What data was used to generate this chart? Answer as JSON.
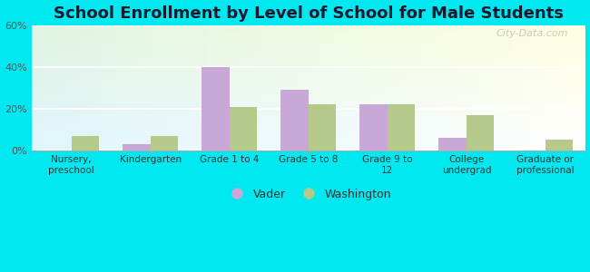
{
  "title": "School Enrollment by Level of School for Male Students",
  "categories": [
    "Nursery,\npreschool",
    "Kindergarten",
    "Grade 1 to 4",
    "Grade 5 to 8",
    "Grade 9 to\n12",
    "College\nundergrad",
    "Graduate or\nprofessional"
  ],
  "vader_values": [
    0,
    3,
    40,
    29,
    22,
    6,
    0
  ],
  "washington_values": [
    7,
    7,
    21,
    22,
    22,
    17,
    5
  ],
  "vader_color": "#c9a8d8",
  "washington_color": "#b5c98a",
  "ylim": [
    0,
    60
  ],
  "yticks": [
    0,
    20,
    40,
    60
  ],
  "ytick_labels": [
    "0%",
    "20%",
    "40%",
    "60%"
  ],
  "background_color": "#00e8f0",
  "title_fontsize": 13,
  "legend_labels": [
    "Vader",
    "Washington"
  ],
  "bar_width": 0.35,
  "watermark": "City-Data.com"
}
